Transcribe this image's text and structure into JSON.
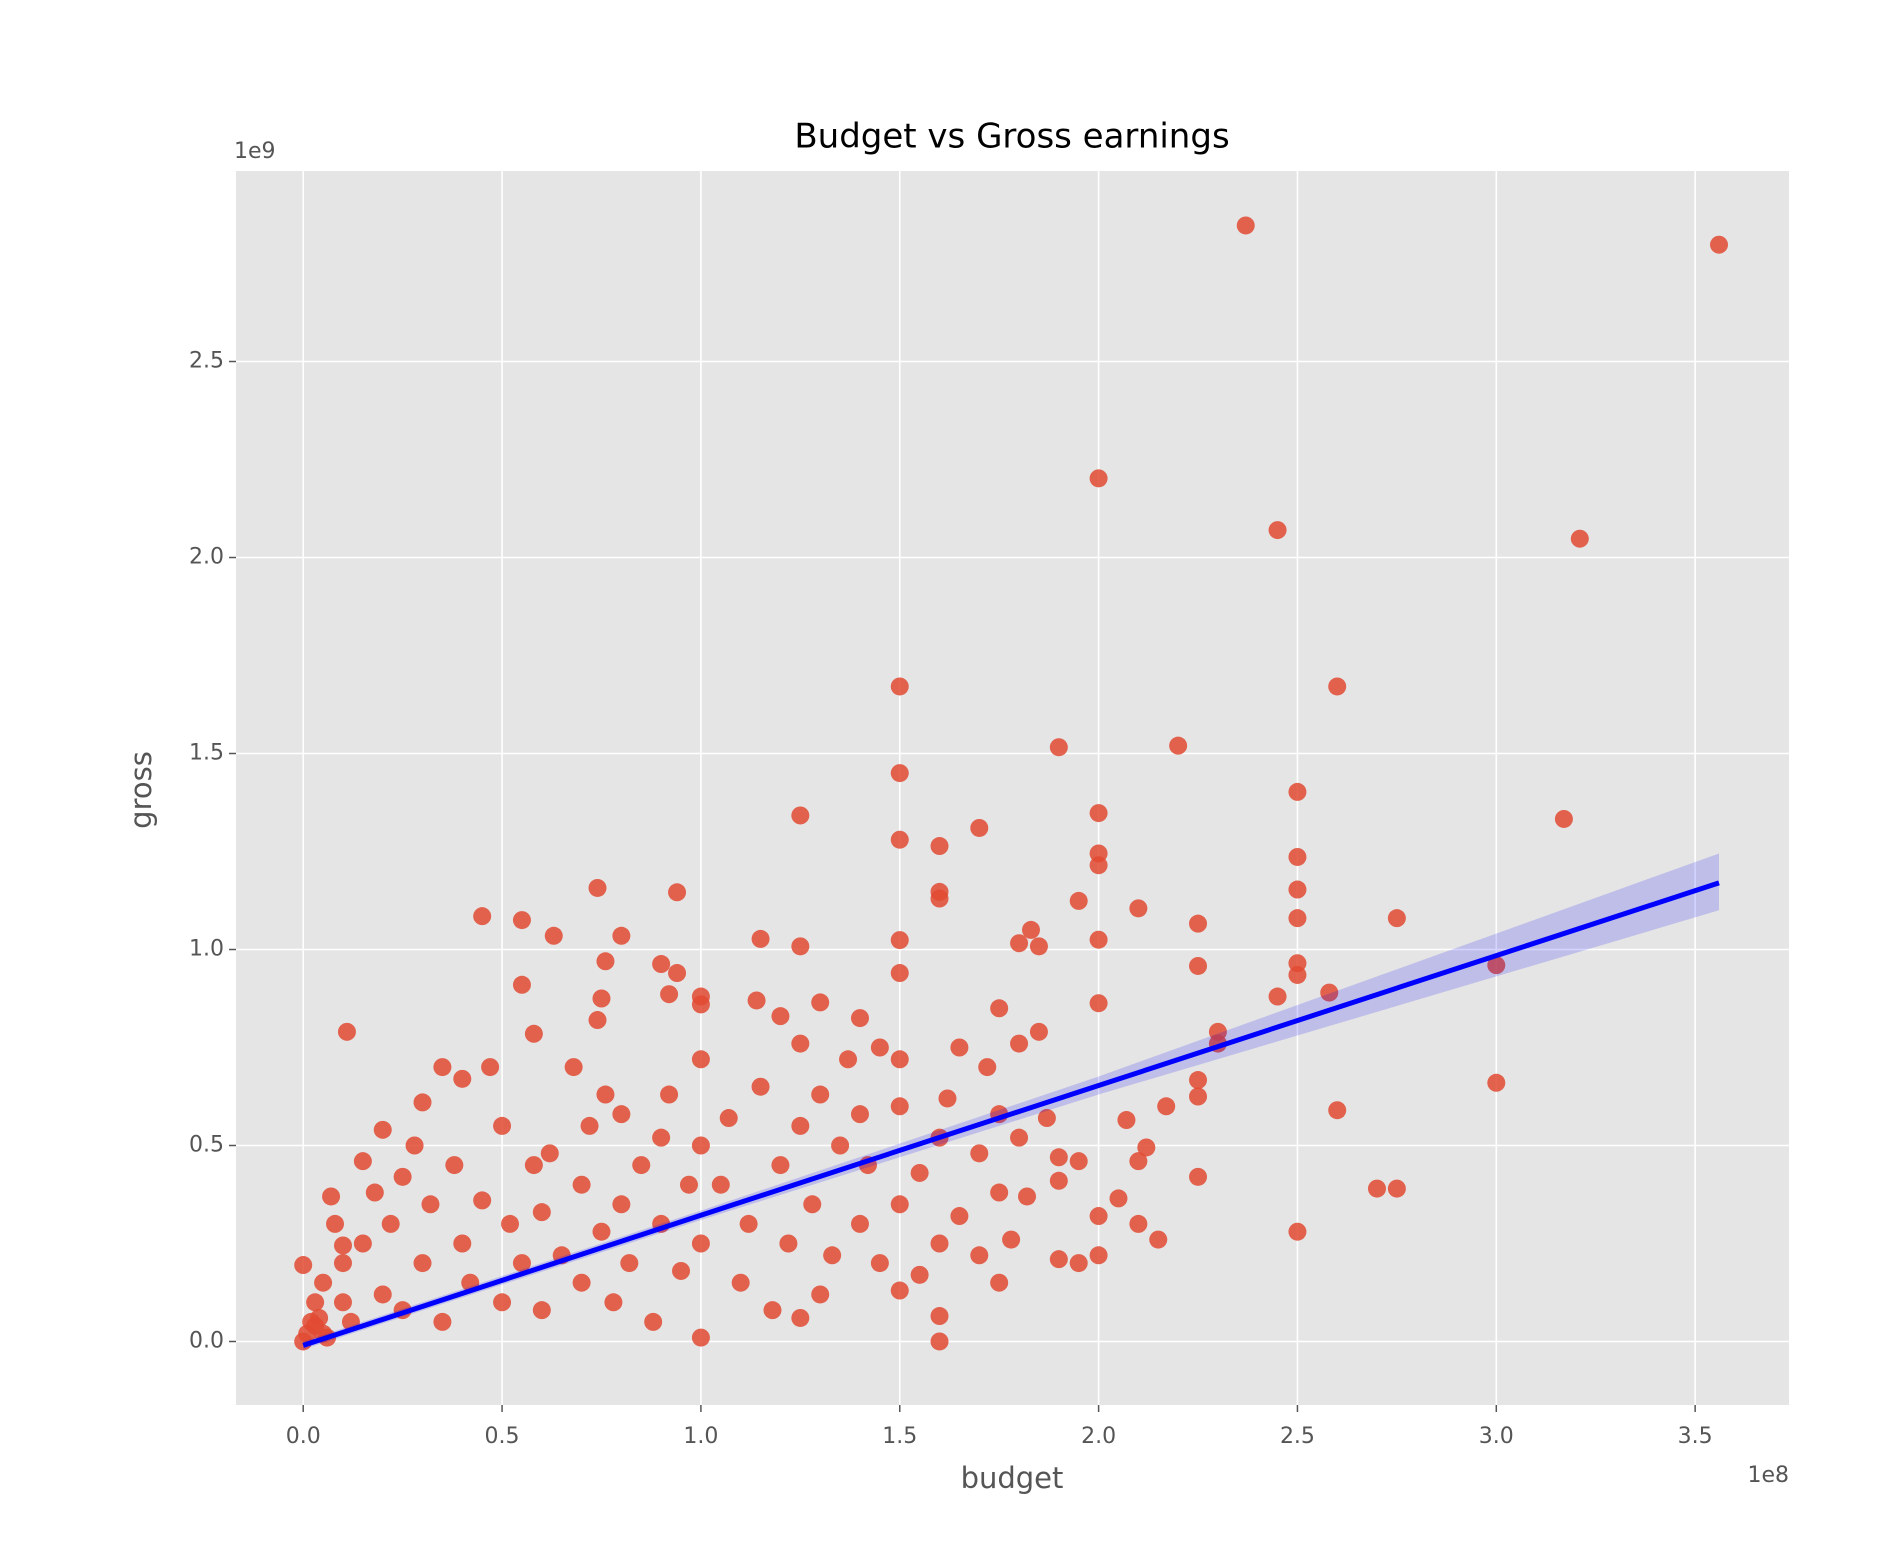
{
  "chart_data": {
    "type": "scatter",
    "title": "Budget vs Gross earnings",
    "x_label": "budget",
    "y_label": "gross",
    "x_offset_label": "1e8",
    "y_offset_label": "1e9",
    "xlim": [
      -16900000,
      373600000
    ],
    "ylim": [
      -162000000,
      2986000000
    ],
    "xticks": [
      {
        "value": 0,
        "label": "0.0"
      },
      {
        "value": 50000000,
        "label": "0.5"
      },
      {
        "value": 100000000,
        "label": "1.0"
      },
      {
        "value": 150000000,
        "label": "1.5"
      },
      {
        "value": 200000000,
        "label": "2.0"
      },
      {
        "value": 250000000,
        "label": "2.5"
      },
      {
        "value": 300000000,
        "label": "3.0"
      },
      {
        "value": 350000000,
        "label": "3.5"
      }
    ],
    "yticks": [
      {
        "value": 0,
        "label": "0.0"
      },
      {
        "value": 500000000,
        "label": "0.5"
      },
      {
        "value": 1000000000,
        "label": "1.0"
      },
      {
        "value": 1500000000,
        "label": "1.5"
      },
      {
        "value": 2000000000,
        "label": "2.0"
      },
      {
        "value": 2500000000,
        "label": "2.5"
      }
    ],
    "grid": true,
    "background": "#e5e5e5",
    "series": [
      {
        "color": "#e24a33",
        "x": [
          237000000,
          356000000,
          200000000,
          245000000,
          321000000,
          150000000,
          260000000,
          190000000,
          220000000,
          150000000,
          250000000,
          125000000,
          200000000,
          317000000,
          170000000,
          150000000,
          160000000,
          200000000,
          200000000,
          250000000,
          160000000,
          160000000,
          74000000,
          94000000,
          250000000,
          195000000,
          210000000,
          45000000,
          55000000,
          250000000,
          275000000,
          225000000,
          183000000,
          63000000,
          80000000,
          115000000,
          150000000,
          200000000,
          125000000,
          180000000,
          185000000,
          76000000,
          90000000,
          94000000,
          150000000,
          225000000,
          250000000,
          250000000,
          100000000,
          100000000,
          75000000,
          114000000,
          245000000,
          258000000,
          300000000,
          11000000,
          55000000,
          130000000,
          92000000,
          200000000,
          230000000,
          230000000,
          120000000,
          140000000,
          58000000,
          74000000,
          300000000,
          260000000,
          225000000,
          225000000,
          225000000,
          250000000,
          270000000,
          275000000,
          215000000,
          217000000,
          207000000,
          212000000,
          210000000,
          205000000,
          210000000,
          195000000,
          190000000,
          200000000,
          200000000,
          160000000,
          160000000,
          10000000,
          7000000,
          0,
          0,
          2000000,
          3000000,
          5000000,
          5000000,
          8000000,
          10000000,
          10000000,
          12000000,
          15000000,
          15000000,
          18000000,
          20000000,
          20000000,
          22000000,
          25000000,
          25000000,
          28000000,
          30000000,
          30000000,
          32000000,
          35000000,
          35000000,
          38000000,
          40000000,
          40000000,
          42000000,
          45000000,
          47000000,
          50000000,
          50000000,
          52000000,
          55000000,
          58000000,
          60000000,
          60000000,
          62000000,
          65000000,
          68000000,
          70000000,
          70000000,
          72000000,
          75000000,
          76000000,
          78000000,
          80000000,
          80000000,
          82000000,
          85000000,
          88000000,
          90000000,
          90000000,
          92000000,
          95000000,
          97000000,
          100000000,
          100000000,
          100000000,
          100000000,
          105000000,
          107000000,
          110000000,
          112000000,
          115000000,
          118000000,
          120000000,
          122000000,
          125000000,
          125000000,
          125000000,
          128000000,
          130000000,
          130000000,
          133000000,
          135000000,
          137000000,
          140000000,
          140000000,
          142000000,
          145000000,
          145000000,
          150000000,
          150000000,
          150000000,
          150000000,
          155000000,
          155000000,
          160000000,
          160000000,
          162000000,
          165000000,
          165000000,
          170000000,
          170000000,
          172000000,
          175000000,
          175000000,
          175000000,
          175000000,
          178000000,
          180000000,
          180000000,
          182000000,
          185000000,
          187000000,
          190000000,
          190000000,
          195000000,
          1000000,
          3000000,
          6000000,
          4000000
        ],
        "values": [
          2847000000,
          2798000000,
          2202000000,
          2070000000,
          2048000000,
          1671000000,
          1671000000,
          1516000000,
          1520000000,
          1450000000,
          1402000000,
          1342000000,
          1348000000,
          1333000000,
          1310000000,
          1280000000,
          1264000000,
          1245000000,
          1215000000,
          1236000000,
          1147000000,
          1130000000,
          1157000000,
          1146000000,
          1153000000,
          1124000000,
          1105000000,
          1085000000,
          1075000000,
          1080000000,
          1080000000,
          1066000000,
          1050000000,
          1035000000,
          1035000000,
          1027000000,
          1024000000,
          1025000000,
          1008000000,
          1016000000,
          1008000000,
          970000000,
          963000000,
          940000000,
          940000000,
          958000000,
          965000000,
          935000000,
          880000000,
          860000000,
          875000000,
          870000000,
          880000000,
          890000000,
          960000000,
          790000000,
          910000000,
          865000000,
          886000000,
          863000000,
          790000000,
          760000000,
          830000000,
          825000000,
          785000000,
          820000000,
          660000000,
          590000000,
          420000000,
          625000000,
          667000000,
          280000000,
          390000000,
          390000000,
          260000000,
          600000000,
          565000000,
          495000000,
          460000000,
          365000000,
          300000000,
          200000000,
          210000000,
          220000000,
          320000000,
          0,
          65000000,
          245000000,
          370000000,
          0,
          195000000,
          50000000,
          100000000,
          20000000,
          150000000,
          300000000,
          100000000,
          200000000,
          50000000,
          250000000,
          460000000,
          380000000,
          120000000,
          540000000,
          300000000,
          80000000,
          420000000,
          500000000,
          200000000,
          610000000,
          350000000,
          50000000,
          700000000,
          450000000,
          250000000,
          670000000,
          150000000,
          360000000,
          700000000,
          100000000,
          550000000,
          300000000,
          200000000,
          450000000,
          80000000,
          330000000,
          480000000,
          220000000,
          700000000,
          150000000,
          400000000,
          550000000,
          280000000,
          630000000,
          100000000,
          350000000,
          580000000,
          200000000,
          450000000,
          50000000,
          300000000,
          520000000,
          630000000,
          180000000,
          400000000,
          10000000,
          250000000,
          500000000,
          720000000,
          400000000,
          570000000,
          150000000,
          300000000,
          650000000,
          80000000,
          450000000,
          250000000,
          60000000,
          550000000,
          760000000,
          350000000,
          120000000,
          630000000,
          220000000,
          500000000,
          720000000,
          300000000,
          580000000,
          450000000,
          750000000,
          200000000,
          130000000,
          350000000,
          600000000,
          720000000,
          170000000,
          430000000,
          250000000,
          520000000,
          620000000,
          320000000,
          750000000,
          220000000,
          480000000,
          700000000,
          150000000,
          380000000,
          580000000,
          850000000,
          260000000,
          520000000,
          760000000,
          370000000,
          790000000,
          570000000,
          410000000,
          470000000,
          460000000,
          20000000,
          40000000,
          10000000,
          60000000
        ]
      }
    ],
    "fit": {
      "color": "#0000ff",
      "x": [
        0,
        100000000,
        200000000,
        356000000
      ],
      "values": [
        -10000000,
        322000000,
        653000000,
        1170000000
      ],
      "ci_lower": [
        -20000000,
        310000000,
        630000000,
        1100000000
      ],
      "ci_upper": [
        0,
        334000000,
        676000000,
        1245000000
      ]
    }
  }
}
